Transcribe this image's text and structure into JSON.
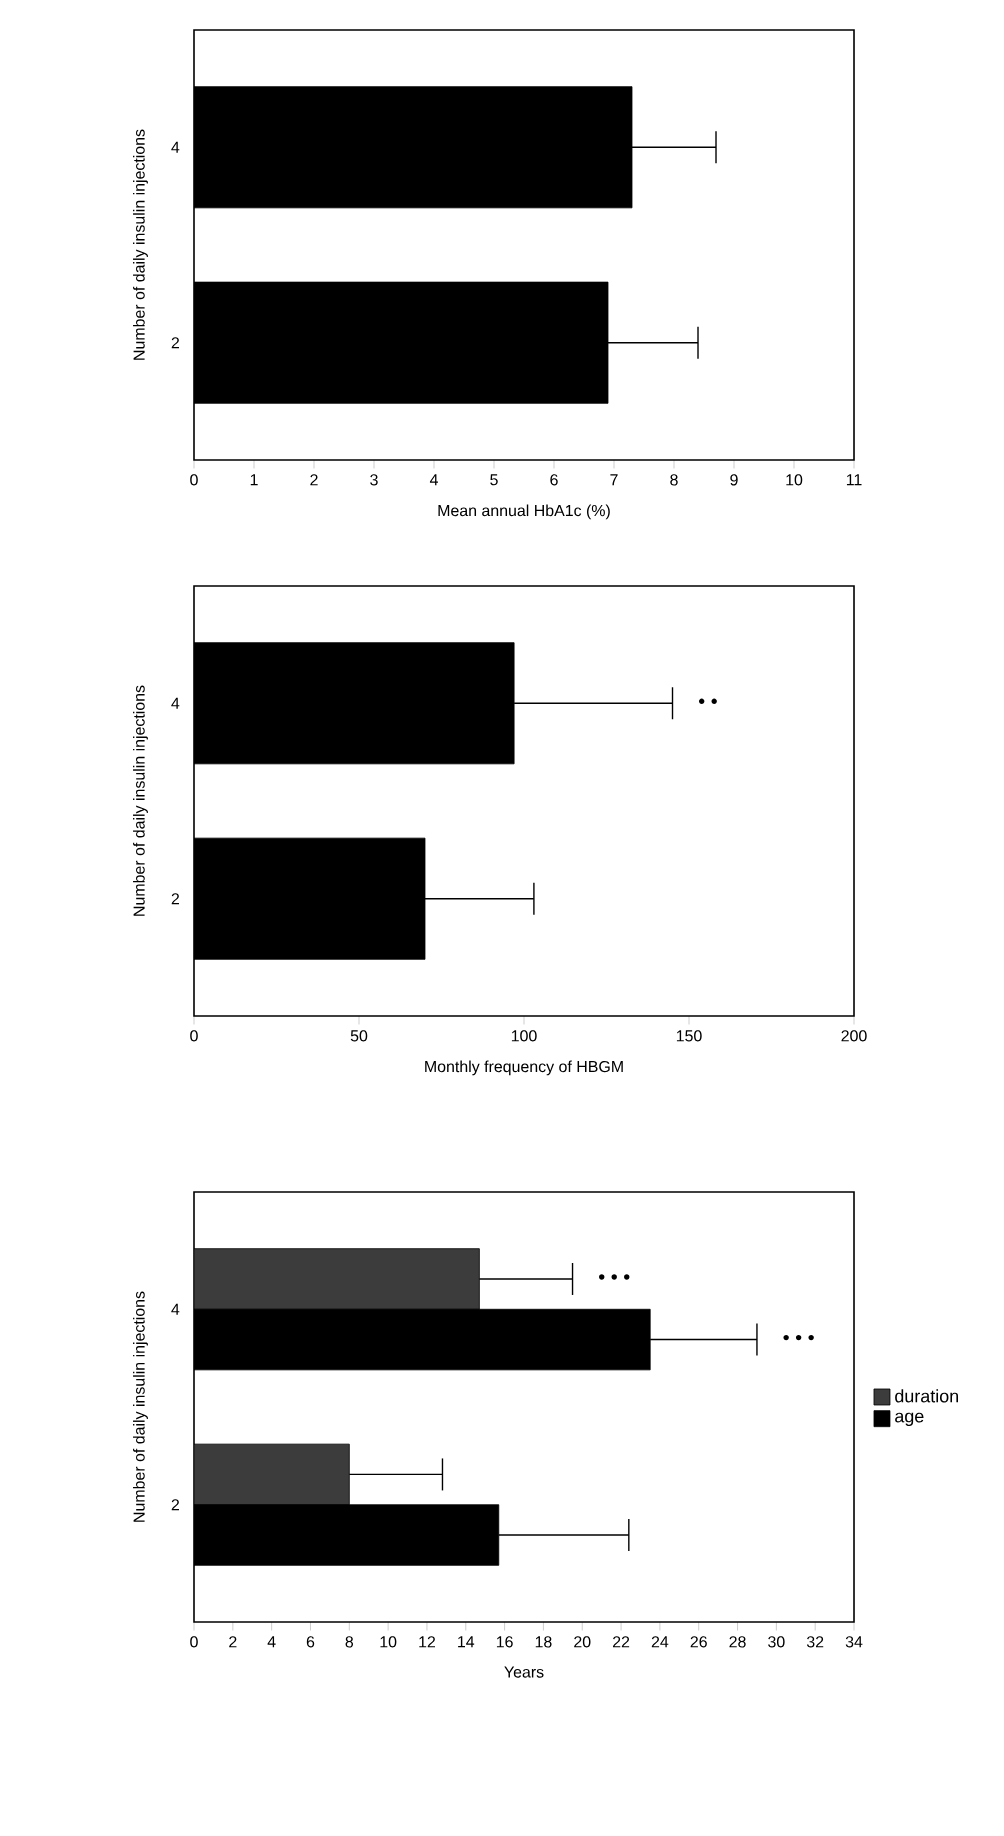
{
  "chart_data": [
    {
      "type": "bar",
      "orientation": "horizontal",
      "xlabel": "Mean annual HbA1c (%)",
      "ylabel": "Number of daily insulin injections",
      "categories": [
        "4",
        "2"
      ],
      "values": [
        7.3,
        6.9
      ],
      "errors": [
        [
          7.3,
          8.7
        ],
        [
          6.9,
          8.4
        ]
      ],
      "color": "#000000",
      "xlim": [
        0,
        11
      ],
      "xticks": [
        0,
        1,
        2,
        3,
        4,
        5,
        6,
        7,
        8,
        9,
        10,
        11
      ]
    },
    {
      "type": "bar",
      "orientation": "horizontal",
      "xlabel": "Monthly frequency of HBGM",
      "ylabel": "Number of daily insulin injections",
      "categories": [
        "4",
        "2"
      ],
      "values": [
        97,
        70
      ],
      "errors": [
        [
          97,
          145
        ],
        [
          70,
          103
        ]
      ],
      "color": "#000000",
      "xlim": [
        0,
        200
      ],
      "xticks": [
        0,
        50,
        100,
        150,
        200
      ],
      "annotations": [
        "• •"
      ]
    },
    {
      "type": "bar",
      "orientation": "horizontal",
      "xlabel": "Years",
      "ylabel": "Number of daily insulin injections",
      "categories": [
        "4",
        "2"
      ],
      "xlim": [
        0,
        34
      ],
      "xticks": [
        0,
        2,
        4,
        6,
        8,
        10,
        12,
        14,
        16,
        18,
        20,
        22,
        24,
        26,
        28,
        30,
        32,
        34
      ],
      "legend": "right",
      "series": [
        {
          "name": "duration",
          "color": "#3c3c3c",
          "values": [
            14.7,
            8.0
          ],
          "errors": [
            [
              14.7,
              19.5
            ],
            [
              8.0,
              12.8
            ]
          ]
        },
        {
          "name": "age",
          "color": "#000000",
          "values": [
            23.5,
            15.7
          ],
          "errors": [
            [
              23.5,
              29.0
            ],
            [
              15.7,
              22.4
            ]
          ]
        }
      ],
      "annotations": [
        "• • •",
        "• • •"
      ]
    }
  ]
}
